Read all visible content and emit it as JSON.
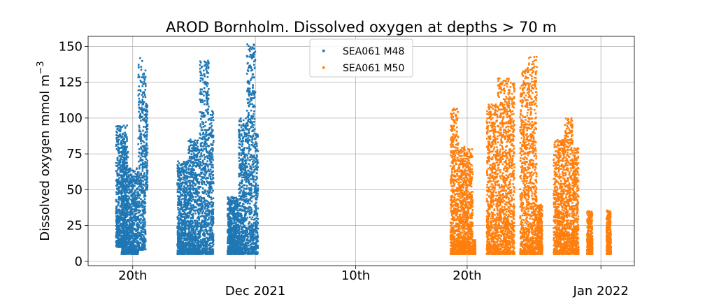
{
  "chart_data": {
    "type": "scatter",
    "title": "AROD Bornholm. Dissolved oxygen at depths > 70 m",
    "xlabel": "",
    "ylabel": "Dissolved oxygen mmol m",
    "ylabel_superscript": "−3",
    "ylim": [
      -3,
      157
    ],
    "xlim": [
      "2021-11-16",
      "2022-01-04"
    ],
    "yticks": [
      0,
      25,
      50,
      75,
      100,
      125,
      150
    ],
    "xticks": [
      {
        "date": "2021-11-20",
        "label": "20th",
        "sublabel": ""
      },
      {
        "date": "2021-12-01",
        "label": "",
        "sublabel": "Dec 2021"
      },
      {
        "date": "2021-12-10",
        "label": "10th",
        "sublabel": ""
      },
      {
        "date": "2021-12-20",
        "label": "20th",
        "sublabel": ""
      },
      {
        "date": "2022-01-01",
        "label": "",
        "sublabel": "Jan 2022"
      }
    ],
    "grid": true,
    "legend_position": "top-center",
    "series": [
      {
        "name": "SEA061 M48",
        "color": "#1f77b4",
        "bursts": [
          {
            "start": "2021-11-18 12:00",
            "end": "2021-11-19 12:00",
            "min": 10,
            "max": 95
          },
          {
            "start": "2021-11-19 00:00",
            "end": "2021-11-19 14:00",
            "min": 5,
            "max": 80
          },
          {
            "start": "2021-11-19 14:00",
            "end": "2021-11-20 12:00",
            "min": 5,
            "max": 65
          },
          {
            "start": "2021-11-20 12:00",
            "end": "2021-11-21 04:00",
            "min": 8,
            "max": 142
          },
          {
            "start": "2021-11-21 04:00",
            "end": "2021-11-21 08:00",
            "min": 50,
            "max": 110
          },
          {
            "start": "2021-11-24 00:00",
            "end": "2021-11-25 00:00",
            "min": 5,
            "max": 70
          },
          {
            "start": "2021-11-25 00:00",
            "end": "2021-11-26 00:00",
            "min": 5,
            "max": 85
          },
          {
            "start": "2021-11-26 00:00",
            "end": "2021-11-26 20:00",
            "min": 5,
            "max": 140
          },
          {
            "start": "2021-11-26 20:00",
            "end": "2021-11-27 06:00",
            "min": 5,
            "max": 105
          },
          {
            "start": "2021-11-28 12:00",
            "end": "2021-11-29 12:00",
            "min": 5,
            "max": 45
          },
          {
            "start": "2021-11-29 12:00",
            "end": "2021-11-30 06:00",
            "min": 5,
            "max": 100
          },
          {
            "start": "2021-11-30 06:00",
            "end": "2021-12-01 00:00",
            "min": 5,
            "max": 152
          },
          {
            "start": "2021-12-01 00:00",
            "end": "2021-12-01 06:00",
            "min": 5,
            "max": 90
          }
        ]
      },
      {
        "name": "SEA061 M50",
        "color": "#ff7f0e",
        "bursts": [
          {
            "start": "2021-12-18 12:00",
            "end": "2021-12-19 06:00",
            "min": 5,
            "max": 107
          },
          {
            "start": "2021-12-19 06:00",
            "end": "2021-12-20 12:00",
            "min": 5,
            "max": 80
          },
          {
            "start": "2021-12-20 12:00",
            "end": "2021-12-20 18:00",
            "min": 5,
            "max": 15
          },
          {
            "start": "2021-12-21 18:00",
            "end": "2021-12-22 18:00",
            "min": 5,
            "max": 110
          },
          {
            "start": "2021-12-22 18:00",
            "end": "2021-12-23 18:00",
            "min": 5,
            "max": 128
          },
          {
            "start": "2021-12-23 18:00",
            "end": "2021-12-24 06:00",
            "min": 5,
            "max": 125
          },
          {
            "start": "2021-12-24 18:00",
            "end": "2021-12-25 12:00",
            "min": 5,
            "max": 135
          },
          {
            "start": "2021-12-25 12:00",
            "end": "2021-12-26 06:00",
            "min": 5,
            "max": 143
          },
          {
            "start": "2021-12-26 06:00",
            "end": "2021-12-26 18:00",
            "min": 5,
            "max": 40
          },
          {
            "start": "2021-12-27 18:00",
            "end": "2021-12-28 18:00",
            "min": 5,
            "max": 85
          },
          {
            "start": "2021-12-28 18:00",
            "end": "2021-12-29 12:00",
            "min": 5,
            "max": 100
          },
          {
            "start": "2021-12-29 12:00",
            "end": "2021-12-30 00:00",
            "min": 5,
            "max": 80
          },
          {
            "start": "2021-12-30 18:00",
            "end": "2021-12-31 06:00",
            "min": 5,
            "max": 35
          },
          {
            "start": "2022-01-01 12:00",
            "end": "2022-01-01 22:00",
            "min": 5,
            "max": 36
          }
        ]
      }
    ]
  }
}
